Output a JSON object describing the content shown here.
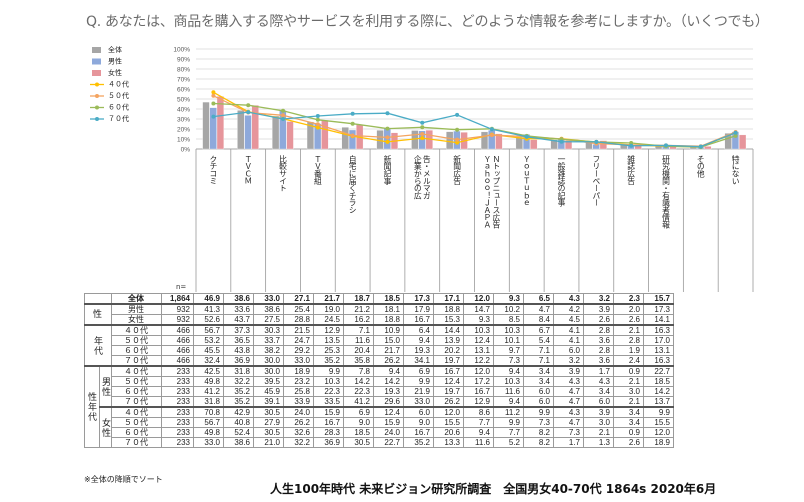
{
  "question": "Q. あなたは、商品を購入する際やサービスを利用する際に、どのような情報を参考にしますか。（いくつでも）",
  "n_label": "n=",
  "note": "※全体の降順でソート",
  "footer": "人生100年時代 未来ビジョン研究所調査　全国男女40-70代 1864s  2020年6月",
  "chart_data": {
    "type": "bar",
    "categories": [
      "クチコミ",
      "ＴＶＣＭ",
      "比較サイト",
      "ＴＶ番組",
      "自宅に届くチラシ",
      "新聞記事",
      "企業からの広告・メルマガ",
      "新聞広告",
      "Ｙａｈｏｏ！ＪＡＰＡＮトップニュース広告",
      "ＹｏｕＴｕｂｅ",
      "一般雑誌の記事",
      "フリーペーパー",
      "雑誌広告",
      "研究機関・有識者情報",
      "その他",
      "特にない"
    ],
    "ylim": [
      0,
      100
    ],
    "yticks": [
      "0%",
      "10%",
      "20%",
      "30%",
      "40%",
      "50%",
      "60%",
      "70%",
      "80%",
      "90%",
      "100%"
    ],
    "bar_series": [
      {
        "name": "全体",
        "color": "#a6a6a6",
        "values": [
          46.9,
          38.6,
          33.0,
          27.1,
          21.7,
          18.7,
          18.5,
          17.3,
          17.1,
          12.0,
          9.3,
          6.5,
          4.3,
          3.2,
          2.3,
          15.7
        ]
      },
      {
        "name": "男性",
        "color": "#8ea9db",
        "values": [
          41.3,
          33.6,
          38.6,
          25.4,
          19.0,
          21.2,
          18.1,
          17.9,
          18.8,
          14.7,
          10.2,
          4.7,
          4.2,
          3.9,
          2.0,
          17.3
        ]
      },
      {
        "name": "女性",
        "color": "#e6959b",
        "values": [
          52.6,
          43.7,
          27.5,
          28.8,
          24.5,
          16.2,
          18.8,
          16.7,
          15.3,
          9.3,
          8.5,
          8.4,
          4.5,
          2.6,
          2.6,
          14.1
        ]
      }
    ],
    "line_series": [
      {
        "name": "４０代",
        "color": "#ffc000",
        "values": [
          56.7,
          37.3,
          30.3,
          21.5,
          12.9,
          7.1,
          10.9,
          6.4,
          14.4,
          10.3,
          10.3,
          6.7,
          4.1,
          2.8,
          2.1,
          16.3
        ]
      },
      {
        "name": "５０代",
        "color": "#f4a460",
        "values": [
          53.2,
          36.5,
          33.7,
          24.7,
          13.5,
          11.6,
          15.0,
          9.4,
          13.9,
          12.4,
          10.1,
          5.4,
          4.1,
          3.6,
          2.8,
          17.0
        ]
      },
      {
        "name": "６０代",
        "color": "#9bbb59",
        "values": [
          45.5,
          43.8,
          38.2,
          29.2,
          25.3,
          20.4,
          21.7,
          19.3,
          20.2,
          13.1,
          9.7,
          7.1,
          6.0,
          2.8,
          1.9,
          13.1
        ]
      },
      {
        "name": "７０代",
        "color": "#4bacc6",
        "values": [
          32.4,
          36.9,
          30.0,
          33.0,
          35.2,
          35.8,
          26.2,
          34.1,
          19.7,
          12.2,
          7.3,
          7.1,
          3.2,
          3.6,
          2.4,
          16.3
        ]
      }
    ],
    "legend_placement": "left"
  },
  "table": {
    "total": {
      "group": "",
      "sub": "",
      "label": "全体",
      "n": "1,864",
      "values": [
        "46.9",
        "38.6",
        "33.0",
        "27.1",
        "21.7",
        "18.7",
        "18.5",
        "17.3",
        "17.1",
        "12.0",
        "9.3",
        "6.5",
        "4.3",
        "3.2",
        "2.3",
        "15.7"
      ]
    },
    "sex_group_label": "性",
    "sex": [
      {
        "label": "男性",
        "n": "932",
        "values": [
          "41.3",
          "33.6",
          "38.6",
          "25.4",
          "19.0",
          "21.2",
          "18.1",
          "17.9",
          "18.8",
          "14.7",
          "10.2",
          "4.7",
          "4.2",
          "3.9",
          "2.0",
          "17.3"
        ]
      },
      {
        "label": "女性",
        "n": "932",
        "values": [
          "52.6",
          "43.7",
          "27.5",
          "28.8",
          "24.5",
          "16.2",
          "18.8",
          "16.7",
          "15.3",
          "9.3",
          "8.5",
          "8.4",
          "4.5",
          "2.6",
          "2.6",
          "14.1"
        ]
      }
    ],
    "age_group_label": "年代",
    "age": [
      {
        "label": "４０代",
        "n": "466",
        "values": [
          "56.7",
          "37.3",
          "30.3",
          "21.5",
          "12.9",
          "7.1",
          "10.9",
          "6.4",
          "14.4",
          "10.3",
          "10.3",
          "6.7",
          "4.1",
          "2.8",
          "2.1",
          "16.3"
        ]
      },
      {
        "label": "５０代",
        "n": "466",
        "values": [
          "53.2",
          "36.5",
          "33.7",
          "24.7",
          "13.5",
          "11.6",
          "15.0",
          "9.4",
          "13.9",
          "12.4",
          "10.1",
          "5.4",
          "4.1",
          "3.6",
          "2.8",
          "17.0"
        ]
      },
      {
        "label": "６０代",
        "n": "466",
        "values": [
          "45.5",
          "43.8",
          "38.2",
          "29.2",
          "25.3",
          "20.4",
          "21.7",
          "19.3",
          "20.2",
          "13.1",
          "9.7",
          "7.1",
          "6.0",
          "2.8",
          "1.9",
          "13.1"
        ]
      },
      {
        "label": "７０代",
        "n": "466",
        "values": [
          "32.4",
          "36.9",
          "30.0",
          "33.0",
          "35.2",
          "35.8",
          "26.2",
          "34.1",
          "19.7",
          "12.2",
          "7.3",
          "7.1",
          "3.2",
          "3.6",
          "2.4",
          "16.3"
        ]
      }
    ],
    "sexage_group_label": "性年代",
    "male_label": "男性",
    "female_label": "女性",
    "male": [
      {
        "label": "４０代",
        "n": "233",
        "values": [
          "42.5",
          "31.8",
          "30.0",
          "18.9",
          "9.9",
          "7.8",
          "9.4",
          "6.9",
          "16.7",
          "12.0",
          "9.4",
          "3.4",
          "3.9",
          "1.7",
          "0.9",
          "22.7"
        ]
      },
      {
        "label": "５０代",
        "n": "233",
        "values": [
          "49.8",
          "32.2",
          "39.5",
          "23.2",
          "10.3",
          "14.2",
          "14.2",
          "9.9",
          "12.4",
          "17.2",
          "10.3",
          "3.4",
          "4.3",
          "4.3",
          "2.1",
          "18.5"
        ]
      },
      {
        "label": "６０代",
        "n": "233",
        "values": [
          "41.2",
          "35.2",
          "45.9",
          "25.8",
          "22.3",
          "22.3",
          "19.3",
          "21.9",
          "19.7",
          "16.7",
          "11.6",
          "6.0",
          "4.7",
          "3.4",
          "3.0",
          "14.2"
        ]
      },
      {
        "label": "７０代",
        "n": "233",
        "values": [
          "31.8",
          "35.2",
          "39.1",
          "33.9",
          "33.5",
          "41.2",
          "29.6",
          "33.0",
          "26.2",
          "12.9",
          "9.4",
          "6.0",
          "4.7",
          "6.0",
          "2.1",
          "13.7"
        ]
      }
    ],
    "female": [
      {
        "label": "４０代",
        "n": "233",
        "values": [
          "70.8",
          "42.9",
          "30.5",
          "24.0",
          "15.9",
          "6.9",
          "12.4",
          "6.0",
          "12.0",
          "8.6",
          "11.2",
          "9.9",
          "4.3",
          "3.9",
          "3.4",
          "9.9"
        ]
      },
      {
        "label": "５０代",
        "n": "233",
        "values": [
          "56.7",
          "40.8",
          "27.9",
          "26.2",
          "16.7",
          "9.0",
          "15.9",
          "9.0",
          "15.5",
          "7.7",
          "9.9",
          "7.3",
          "4.7",
          "3.0",
          "3.4",
          "15.5"
        ]
      },
      {
        "label": "６０代",
        "n": "233",
        "values": [
          "49.8",
          "52.4",
          "30.5",
          "32.6",
          "28.3",
          "18.5",
          "24.0",
          "16.7",
          "20.6",
          "9.4",
          "7.7",
          "8.2",
          "7.3",
          "2.1",
          "0.9",
          "12.0"
        ]
      },
      {
        "label": "７０代",
        "n": "233",
        "values": [
          "33.0",
          "38.6",
          "21.0",
          "32.2",
          "36.9",
          "30.5",
          "22.7",
          "35.2",
          "13.3",
          "11.6",
          "5.2",
          "8.2",
          "1.7",
          "1.3",
          "2.6",
          "18.9"
        ]
      }
    ]
  }
}
